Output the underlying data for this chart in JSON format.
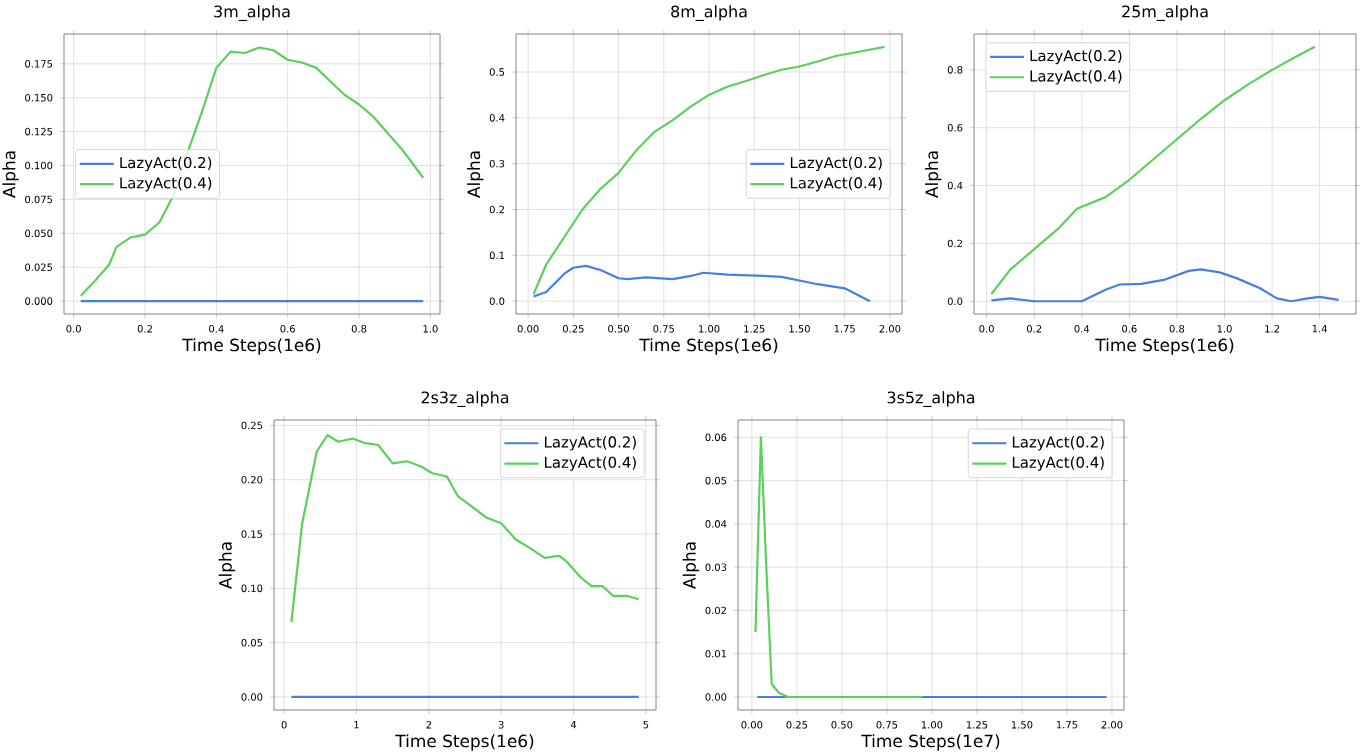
{
  "chart_data": [
    {
      "type": "line",
      "title": "3m_alpha",
      "xlabel": "Time Steps(1e6)",
      "ylabel": "Alpha",
      "grid": true,
      "legend": "center left",
      "xlim": [
        -0.027,
        1.027
      ],
      "ylim": [
        -0.0095,
        0.197
      ],
      "xticks": [
        {
          "value": 0,
          "label": "0.0"
        },
        0.2,
        0.4,
        0.6,
        0.8,
        {
          "value": 1,
          "label": "1.0"
        }
      ],
      "yticks": [
        {
          "value": 0,
          "label": "0.000"
        },
        0.025,
        {
          "value": 0.05,
          "label": "0.050"
        },
        0.075,
        {
          "value": 0.1,
          "label": "0.100"
        },
        0.125,
        {
          "value": 0.15,
          "label": "0.150"
        },
        0.175
      ],
      "series": [
        {
          "name": "LazyAct(0.2)",
          "color": "#4a7de3",
          "x": [
            0.02,
            0.98
          ],
          "values": [
            0,
            0
          ]
        },
        {
          "name": "LazyAct(0.4)",
          "color": "#5ccf5c",
          "x": [
            0.02,
            0.06,
            0.1,
            0.12,
            0.16,
            0.2,
            0.24,
            0.28,
            0.32,
            0.36,
            0.4,
            0.44,
            0.48,
            0.52,
            0.56,
            0.6,
            0.64,
            0.68,
            0.72,
            0.76,
            0.8,
            0.84,
            0.88,
            0.92,
            0.96,
            0.98
          ],
          "values": [
            0.004,
            0.015,
            0.027,
            0.04,
            0.047,
            0.049,
            0.058,
            0.078,
            0.11,
            0.14,
            0.172,
            0.184,
            0.183,
            0.187,
            0.185,
            0.178,
            0.176,
            0.172,
            0.162,
            0.152,
            0.145,
            0.136,
            0.124,
            0.112,
            0.098,
            0.091
          ]
        }
      ]
    },
    {
      "type": "line",
      "title": "8m_alpha",
      "xlabel": "Time Steps(1e6)",
      "ylabel": "Alpha",
      "grid": true,
      "legend": "center right",
      "xlim": [
        -0.067,
        2.067
      ],
      "ylim": [
        -0.028,
        0.583
      ],
      "xticks": [
        {
          "value": 0,
          "label": "0.00"
        },
        0.25,
        {
          "value": 0.5,
          "label": "0.50"
        },
        0.75,
        {
          "value": 1,
          "label": "1.00"
        },
        1.25,
        {
          "value": 1.5,
          "label": "1.50"
        },
        1.75,
        {
          "value": 2,
          "label": "2.00"
        }
      ],
      "yticks": [
        {
          "value": 0,
          "label": "0.0"
        },
        0.1,
        0.2,
        0.3,
        0.4,
        0.5
      ],
      "series": [
        {
          "name": "LazyAct(0.2)",
          "color": "#4a7de3",
          "x": [
            0.03,
            0.1,
            0.2,
            0.25,
            0.32,
            0.4,
            0.5,
            0.55,
            0.65,
            0.8,
            0.9,
            0.97,
            1.1,
            1.3,
            1.4,
            1.5,
            1.6,
            1.75,
            1.89
          ],
          "values": [
            0.01,
            0.02,
            0.06,
            0.073,
            0.077,
            0.068,
            0.05,
            0.048,
            0.052,
            0.048,
            0.055,
            0.062,
            0.058,
            0.055,
            0.053,
            0.045,
            0.037,
            0.028,
            0.0
          ]
        },
        {
          "name": "LazyAct(0.4)",
          "color": "#5ccf5c",
          "x": [
            0.03,
            0.1,
            0.2,
            0.3,
            0.4,
            0.5,
            0.6,
            0.7,
            0.8,
            0.9,
            1.0,
            1.1,
            1.2,
            1.3,
            1.4,
            1.5,
            1.6,
            1.7,
            1.8,
            1.97
          ],
          "values": [
            0.015,
            0.08,
            0.14,
            0.2,
            0.245,
            0.28,
            0.33,
            0.37,
            0.395,
            0.425,
            0.45,
            0.468,
            0.48,
            0.493,
            0.505,
            0.512,
            0.523,
            0.535,
            0.542,
            0.555
          ]
        }
      ]
    },
    {
      "type": "line",
      "title": "25m_alpha",
      "xlabel": "Time Steps(1e6)",
      "ylabel": "Alpha",
      "grid": true,
      "legend": "top left",
      "xlim": [
        -0.053,
        1.553
      ],
      "ylim": [
        -0.044,
        0.924
      ],
      "xticks": [
        {
          "value": 0,
          "label": "0.0"
        },
        0.2,
        0.4,
        0.6,
        0.8,
        {
          "value": 1,
          "label": "1.0"
        },
        1.2,
        1.4
      ],
      "yticks": [
        {
          "value": 0,
          "label": "0.0"
        },
        0.2,
        0.4,
        0.6,
        0.8
      ],
      "series": [
        {
          "name": "LazyAct(0.2)",
          "color": "#4a7de3",
          "x": [
            0.02,
            0.1,
            0.2,
            0.3,
            0.4,
            0.5,
            0.56,
            0.65,
            0.75,
            0.85,
            0.9,
            0.98,
            1.05,
            1.15,
            1.22,
            1.28,
            1.35,
            1.4,
            1.48
          ],
          "values": [
            0.003,
            0.01,
            0.0,
            0.0,
            0.0,
            0.04,
            0.058,
            0.06,
            0.075,
            0.105,
            0.11,
            0.1,
            0.08,
            0.045,
            0.01,
            0.0,
            0.01,
            0.015,
            0.005
          ]
        },
        {
          "name": "LazyAct(0.4)",
          "color": "#5ccf5c",
          "x": [
            0.02,
            0.1,
            0.2,
            0.3,
            0.38,
            0.5,
            0.6,
            0.7,
            0.8,
            0.9,
            1.0,
            1.1,
            1.2,
            1.3,
            1.38
          ],
          "values": [
            0.025,
            0.11,
            0.18,
            0.25,
            0.32,
            0.36,
            0.42,
            0.49,
            0.56,
            0.63,
            0.695,
            0.75,
            0.8,
            0.845,
            0.88
          ]
        }
      ]
    },
    {
      "type": "line",
      "title": "2s3z_alpha",
      "xlabel": "Time Steps(1e6)",
      "ylabel": "Alpha",
      "grid": true,
      "legend": "top right",
      "xlim": [
        -0.14,
        5.14
      ],
      "ylim": [
        -0.012,
        0.255
      ],
      "xticks": [
        0,
        1,
        2,
        3,
        4,
        5
      ],
      "yticks": [
        {
          "value": 0,
          "label": "0.00"
        },
        0.05,
        {
          "value": 0.1,
          "label": "0.10"
        },
        0.15,
        {
          "value": 0.2,
          "label": "0.20"
        },
        0.25
      ],
      "series": [
        {
          "name": "LazyAct(0.2)",
          "color": "#4a7de3",
          "x": [
            0.1,
            4.9
          ],
          "values": [
            0,
            0
          ]
        },
        {
          "name": "LazyAct(0.4)",
          "color": "#5ccf5c",
          "x": [
            0.1,
            0.25,
            0.45,
            0.6,
            0.75,
            0.95,
            1.1,
            1.3,
            1.5,
            1.7,
            1.9,
            2.05,
            2.25,
            2.4,
            2.6,
            2.8,
            3.0,
            3.2,
            3.4,
            3.6,
            3.8,
            3.9,
            4.1,
            4.25,
            4.4,
            4.55,
            4.75,
            4.9
          ],
          "values": [
            0.069,
            0.16,
            0.226,
            0.241,
            0.235,
            0.238,
            0.234,
            0.232,
            0.215,
            0.217,
            0.212,
            0.206,
            0.203,
            0.185,
            0.175,
            0.165,
            0.16,
            0.145,
            0.137,
            0.128,
            0.13,
            0.125,
            0.11,
            0.102,
            0.102,
            0.093,
            0.093,
            0.09
          ]
        }
      ]
    },
    {
      "type": "line",
      "title": "3s5z_alpha",
      "xlabel": "Time Steps(1e7)",
      "ylabel": "Alpha",
      "grid": true,
      "legend": "top right",
      "xlim": [
        -0.077,
        2.067
      ],
      "ylim": [
        -0.003,
        0.064
      ],
      "xticks": [
        {
          "value": 0,
          "label": "0.00"
        },
        0.25,
        {
          "value": 0.5,
          "label": "0.50"
        },
        0.75,
        {
          "value": 1,
          "label": "1.00"
        },
        1.25,
        {
          "value": 1.5,
          "label": "1.50"
        },
        1.75,
        {
          "value": 2,
          "label": "2.00"
        }
      ],
      "yticks": [
        {
          "value": 0,
          "label": "0.00"
        },
        0.01,
        0.02,
        0.03,
        0.04,
        0.05,
        0.06
      ],
      "series": [
        {
          "name": "LazyAct(0.2)",
          "color": "#4a7de3",
          "x": [
            0.03,
            1.97
          ],
          "values": [
            0,
            0
          ]
        },
        {
          "name": "LazyAct(0.4)",
          "color": "#5ccf5c",
          "x": [
            0.02,
            0.05,
            0.08,
            0.11,
            0.15,
            0.2,
            0.5,
            0.95
          ],
          "values": [
            0.015,
            0.06,
            0.03,
            0.003,
            0.001,
            0.0,
            0.0,
            0.0
          ]
        }
      ]
    }
  ]
}
